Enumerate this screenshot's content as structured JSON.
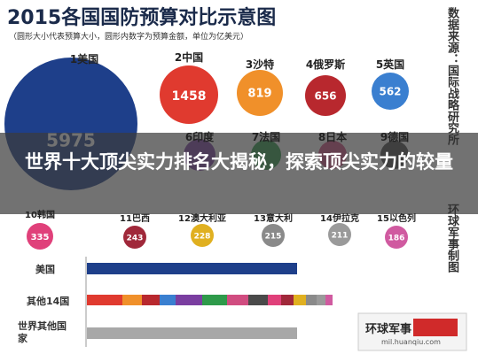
{
  "header": {
    "title": "2015各国国防预算对比示意图",
    "subtitle": "（圆形大小代表预算大小，圆形内数字为预算金额，单位为亿美元）"
  },
  "countries": [
    {
      "label": "1美国",
      "amount": "5975"
    },
    {
      "label": "2中国",
      "amount": "1458"
    },
    {
      "label": "3沙特",
      "amount": "819"
    },
    {
      "label": "4俄罗斯",
      "amount": "656"
    },
    {
      "label": "5英国",
      "amount": "562"
    },
    {
      "label": "6印度"
    },
    {
      "label": "7法国"
    },
    {
      "label": "8日本"
    },
    {
      "label": "9德国"
    },
    {
      "label": "10韩国",
      "amount": "335"
    },
    {
      "label": "11巴西",
      "amount": "243"
    },
    {
      "label": "12澳大利亚",
      "amount": "228"
    },
    {
      "label": "13意大利",
      "amount": "215"
    },
    {
      "label": "14伊拉克",
      "amount": "211"
    },
    {
      "label": "15以色列",
      "amount": "186"
    }
  ],
  "bars": [
    "美国",
    "其他14国",
    "世界其他国家"
  ],
  "side": {
    "source": "数据来源：国际战略研究所",
    "credit": "环球军事制图"
  },
  "overlay": {
    "headline": "世界十大顶尖实力排名大揭秘，探索顶尖实力的较量"
  },
  "logo": {
    "name": "环球军事",
    "url": "mil.huanqiu.com"
  }
}
